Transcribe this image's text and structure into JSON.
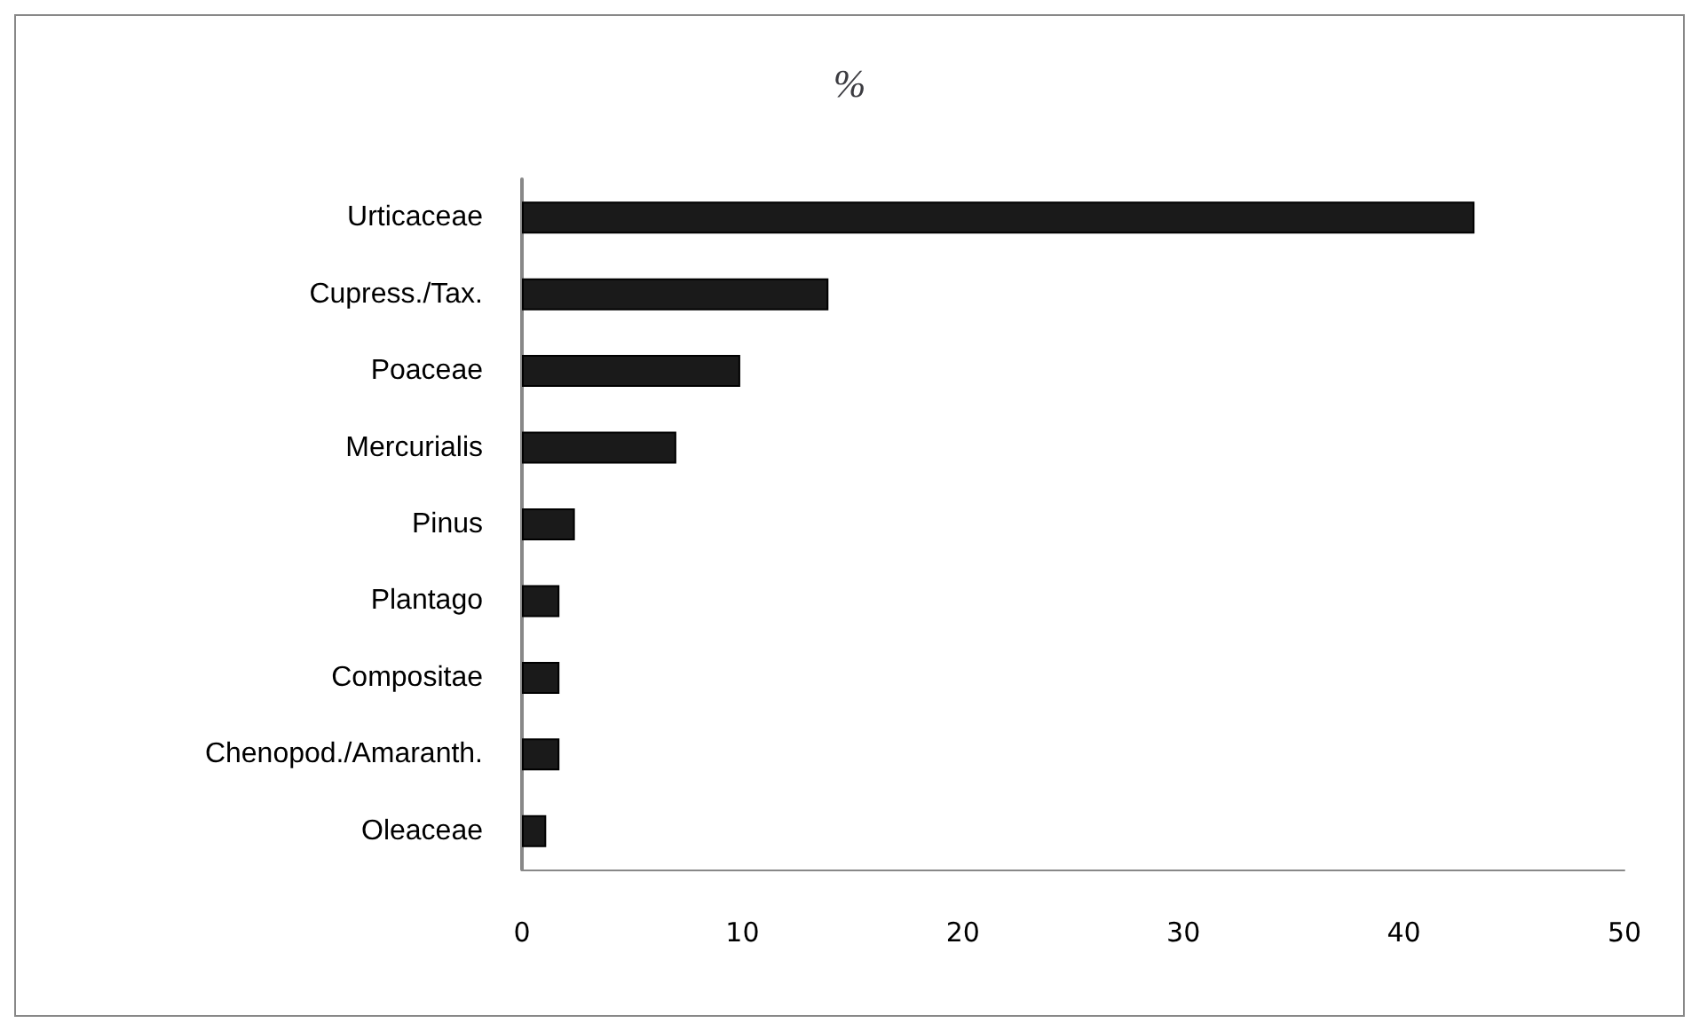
{
  "chart_data": {
    "type": "bar",
    "orientation": "horizontal",
    "title": "%",
    "categories": [
      "Urticaceae",
      "Cupress./Tax.",
      "Poaceae",
      "Mercurialis",
      "Pinus",
      "Plantago",
      "Compositae",
      "Chenopod./Amaranth.",
      "Oleaceae"
    ],
    "values": [
      43.2,
      13.9,
      9.9,
      7.0,
      2.4,
      1.7,
      1.7,
      1.7,
      1.1
    ],
    "color": "#1a1a1a",
    "xlim": [
      0,
      50
    ],
    "xticks": [
      0,
      10,
      20,
      30,
      40,
      50
    ],
    "grid": false
  }
}
